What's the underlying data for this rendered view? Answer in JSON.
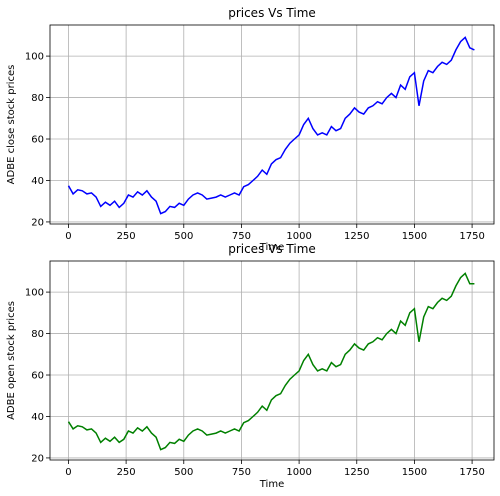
{
  "chart_data": [
    {
      "type": "line",
      "title": "prices Vs Time",
      "xlabel": "Time",
      "ylabel": "ADBE close stock prices",
      "xlim": [
        -80,
        1845
      ],
      "ylim": [
        19,
        115
      ],
      "xticks": [
        0,
        250,
        500,
        750,
        1000,
        1250,
        1500,
        1750
      ],
      "yticks": [
        20,
        40,
        60,
        80,
        100
      ],
      "grid": true,
      "series": [
        {
          "color": "#0000ff",
          "x": [
            0,
            20,
            40,
            60,
            80,
            100,
            120,
            140,
            160,
            180,
            200,
            220,
            240,
            260,
            280,
            300,
            320,
            340,
            360,
            380,
            400,
            420,
            440,
            460,
            480,
            500,
            520,
            540,
            560,
            580,
            600,
            620,
            640,
            660,
            680,
            700,
            720,
            740,
            760,
            780,
            800,
            820,
            840,
            860,
            880,
            900,
            920,
            940,
            960,
            980,
            1000,
            1020,
            1040,
            1060,
            1080,
            1100,
            1120,
            1140,
            1160,
            1180,
            1200,
            1220,
            1240,
            1260,
            1280,
            1300,
            1320,
            1340,
            1360,
            1380,
            1400,
            1420,
            1440,
            1460,
            1480,
            1500,
            1520,
            1540,
            1560,
            1580,
            1600,
            1620,
            1640,
            1660,
            1680,
            1700,
            1720,
            1740,
            1760
          ],
          "values": [
            37.5,
            33.5,
            35.5,
            35,
            33.5,
            34,
            32,
            27.5,
            29.5,
            28,
            30,
            27,
            29,
            33,
            32,
            34.5,
            33,
            35,
            32,
            30,
            24,
            25,
            27.5,
            27,
            29,
            28,
            31,
            33,
            34,
            33,
            31,
            31.5,
            32,
            33,
            32,
            33,
            34,
            33,
            37,
            38,
            40,
            42,
            45,
            43,
            48,
            50,
            51,
            55,
            58,
            60,
            62,
            67,
            70,
            65,
            62,
            63,
            62,
            66,
            64,
            65,
            70,
            72,
            75,
            73,
            72,
            75,
            76,
            78,
            77,
            80,
            82,
            80,
            86,
            84,
            90,
            92,
            76,
            88,
            93,
            92,
            95,
            97,
            96,
            98,
            103,
            107,
            109,
            104,
            103
          ]
        }
      ]
    },
    {
      "type": "line",
      "title": "prices Vs Time",
      "xlabel": "Time",
      "ylabel": "ADBE open stock prices",
      "xlim": [
        -80,
        1845
      ],
      "ylim": [
        19,
        115
      ],
      "xticks": [
        0,
        250,
        500,
        750,
        1000,
        1250,
        1500,
        1750
      ],
      "yticks": [
        20,
        40,
        60,
        80,
        100
      ],
      "grid": true,
      "series": [
        {
          "color": "#008000",
          "x": [
            0,
            20,
            40,
            60,
            80,
            100,
            120,
            140,
            160,
            180,
            200,
            220,
            240,
            260,
            280,
            300,
            320,
            340,
            360,
            380,
            400,
            420,
            440,
            460,
            480,
            500,
            520,
            540,
            560,
            580,
            600,
            620,
            640,
            660,
            680,
            700,
            720,
            740,
            760,
            780,
            800,
            820,
            840,
            860,
            880,
            900,
            920,
            940,
            960,
            980,
            1000,
            1020,
            1040,
            1060,
            1080,
            1100,
            1120,
            1140,
            1160,
            1180,
            1200,
            1220,
            1240,
            1260,
            1280,
            1300,
            1320,
            1340,
            1360,
            1380,
            1400,
            1420,
            1440,
            1460,
            1480,
            1500,
            1520,
            1540,
            1560,
            1580,
            1600,
            1620,
            1640,
            1660,
            1680,
            1700,
            1720,
            1740,
            1760
          ],
          "values": [
            37.5,
            34,
            35.5,
            35,
            33.5,
            34,
            32,
            27.5,
            29.5,
            28,
            30,
            27.5,
            29,
            33,
            32,
            34.5,
            33,
            35,
            32,
            30,
            24,
            25,
            27.5,
            27,
            29,
            28,
            31,
            33,
            34,
            33,
            31,
            31.5,
            32,
            33,
            32,
            33,
            34,
            33,
            37,
            38,
            40,
            42,
            45,
            43,
            48,
            50,
            51,
            55,
            58,
            60,
            62,
            67,
            70,
            65,
            62,
            63,
            62,
            66,
            64,
            65,
            70,
            72,
            75,
            73,
            72,
            75,
            76,
            78,
            77,
            80,
            82,
            80,
            86,
            84,
            90,
            92,
            76,
            88,
            93,
            92,
            95,
            97,
            96,
            98,
            103,
            107,
            109,
            104,
            104
          ]
        }
      ]
    }
  ]
}
